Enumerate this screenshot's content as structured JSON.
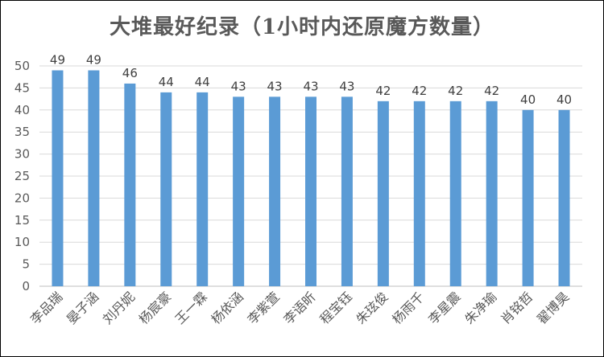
{
  "chart_data": {
    "type": "bar",
    "title": "大堆最好纪录（1小时内还原魔方数量）",
    "xlabel": "",
    "ylabel": "",
    "ylim": [
      0,
      50
    ],
    "yticks": [
      0,
      5,
      10,
      15,
      20,
      25,
      30,
      35,
      40,
      45,
      50
    ],
    "grid": true,
    "legend": "none",
    "bar_color": "#5b9bd5",
    "categories": [
      "李品瑞",
      "晏子涵",
      "刘丹妮",
      "杨宸豪",
      "王一霖",
      "杨依涵",
      "李紫萱",
      "李语昕",
      "程宝钰",
      "朱玹俊",
      "杨雨千",
      "李星震",
      "朱净瑜",
      "肖铭哲",
      "翟博昊"
    ],
    "values": [
      49,
      49,
      46,
      44,
      44,
      43,
      43,
      43,
      43,
      42,
      42,
      42,
      42,
      40,
      40
    ]
  }
}
